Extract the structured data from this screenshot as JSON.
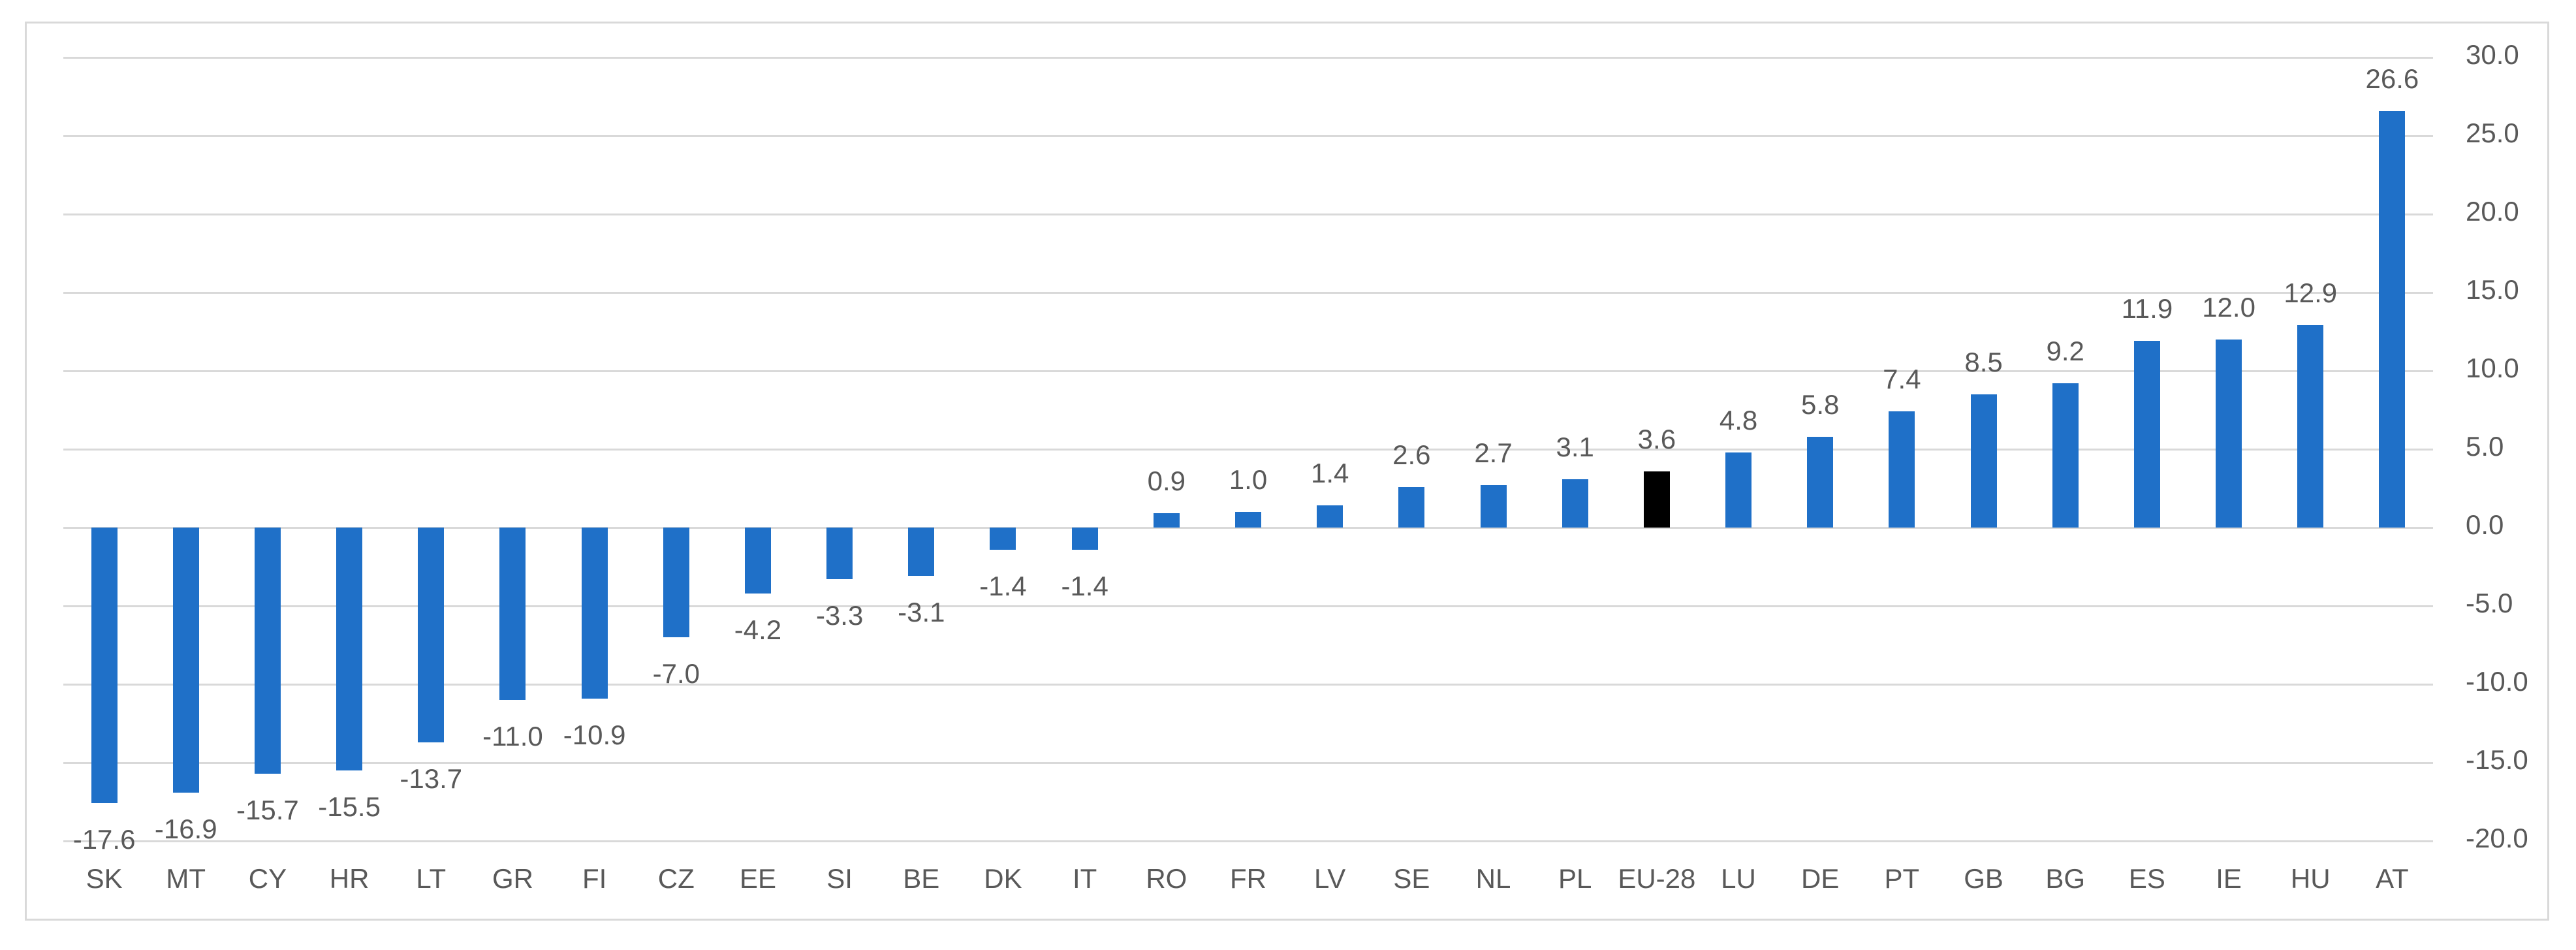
{
  "chart_data": {
    "type": "bar",
    "title": "",
    "xlabel": "",
    "ylabel": "",
    "categories": [
      "SK",
      "MT",
      "CY",
      "HR",
      "LT",
      "GR",
      "FI",
      "CZ",
      "EE",
      "SI",
      "BE",
      "DK",
      "IT",
      "RO",
      "FR",
      "LV",
      "SE",
      "NL",
      "PL",
      "EU-28",
      "LU",
      "DE",
      "PT",
      "GB",
      "BG",
      "ES",
      "IE",
      "HU",
      "AT"
    ],
    "values": [
      -17.6,
      -16.9,
      -15.7,
      -15.5,
      -13.7,
      -11.0,
      -10.9,
      -7.0,
      -4.2,
      -3.3,
      -3.1,
      -1.4,
      -1.4,
      0.9,
      1.0,
      1.4,
      2.6,
      2.7,
      3.1,
      3.6,
      4.8,
      5.8,
      7.4,
      8.5,
      9.2,
      11.9,
      12.0,
      12.9,
      26.6
    ],
    "data_labels": [
      "-17.6",
      "-16.9",
      "-15.7",
      "-15.5",
      "-13.7",
      "-11.0",
      "-10.9",
      "-7.0",
      "-4.2",
      "-3.3",
      "-3.1",
      "-1.4",
      "-1.4",
      "0.9",
      "1.0",
      "1.4",
      "2.6",
      "2.7",
      "3.1",
      "3.6",
      "4.8",
      "5.8",
      "7.4",
      "8.5",
      "9.2",
      "11.9",
      "12.0",
      "12.9",
      "26.6"
    ],
    "highlight_category": "EU-28",
    "ylim": [
      -20,
      30
    ],
    "ytick_interval": 5,
    "ytick_labels": [
      "30.0",
      "25.0",
      "20.0",
      "15.0",
      "10.0",
      "5.0",
      "0.0",
      "-5.0",
      "-10.0",
      "-15.0",
      "-20.0"
    ],
    "yaxis_side": "right",
    "grid": true,
    "legend": false,
    "colors": {
      "bar": "#1F70C8",
      "highlight_bar": "#000000",
      "gridline": "#D9D9D9",
      "frame_border": "#D9D9D9",
      "axis_text": "#595959",
      "label_text": "#595959",
      "background": "#FFFFFF"
    }
  }
}
